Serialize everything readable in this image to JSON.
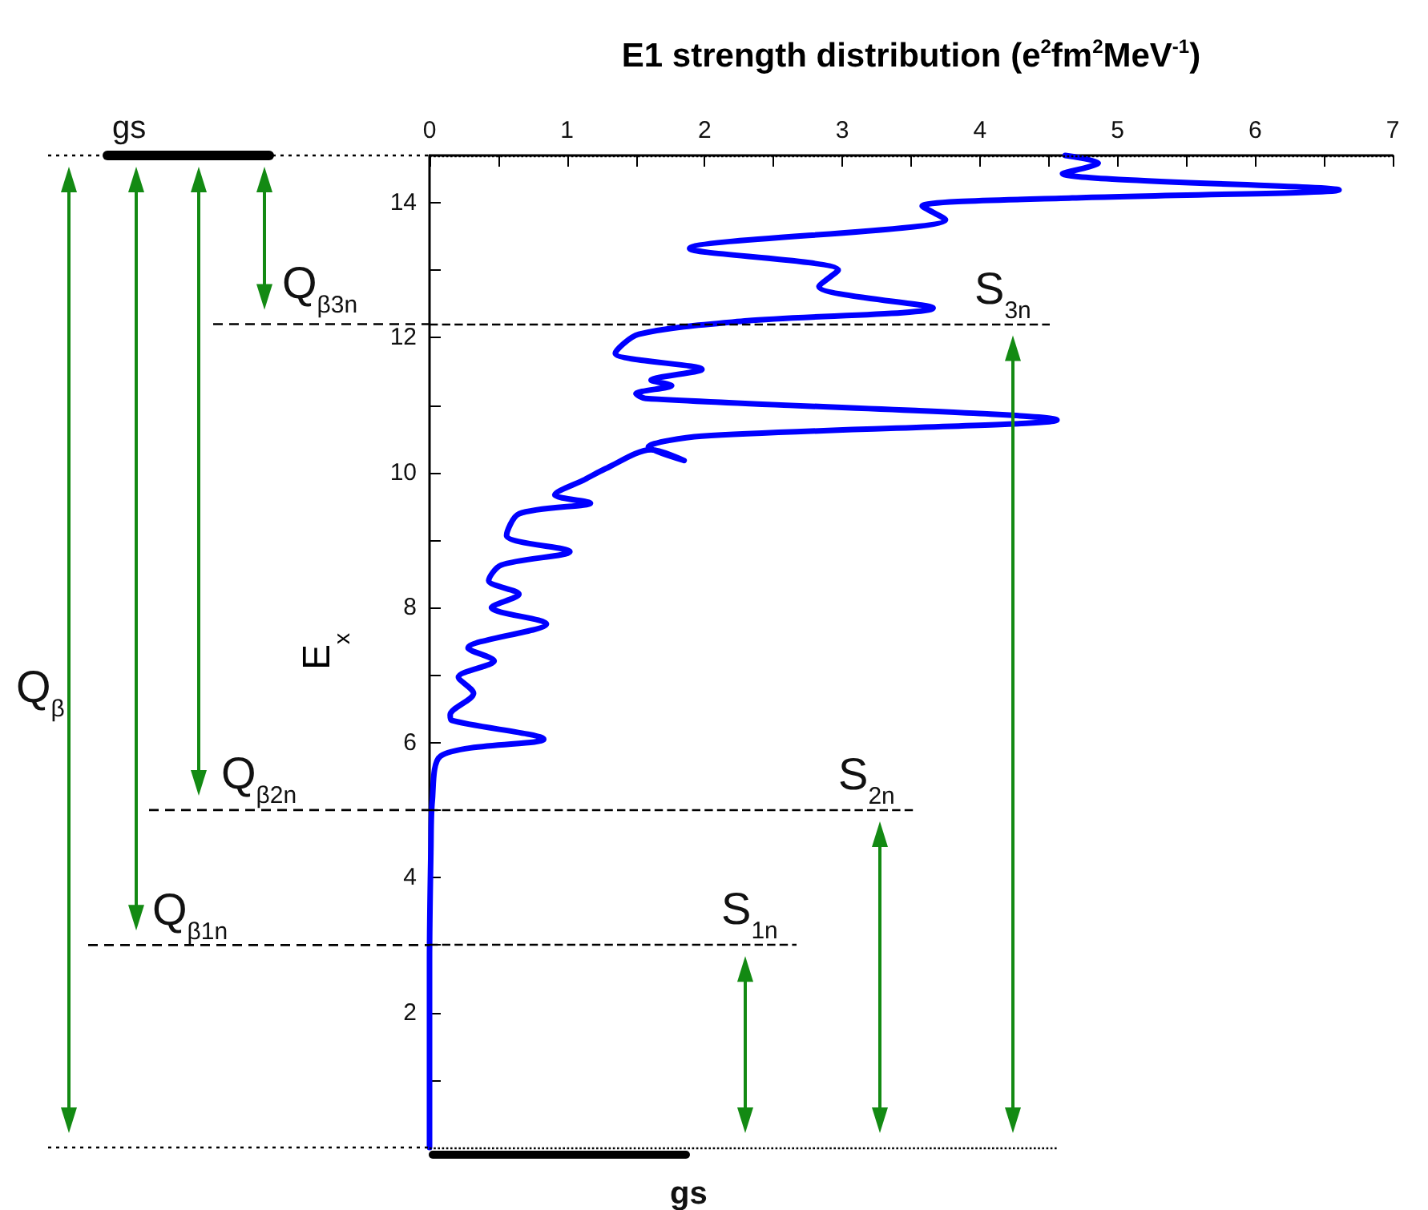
{
  "chart_data": {
    "type": "line",
    "xlabel": "E1 strength distribution (e$^{2}$fm$^{2}$MeV$^{-1}$)",
    "ylabel": "E$_{x}$",
    "series": [
      {
        "color": "#0000ff",
        "x": [
          0,
          0,
          0.01,
          0.02,
          0.08,
          0.83,
          0.16,
          0.15,
          0.32,
          0.21,
          0.47,
          0.28,
          0.85,
          0.45,
          0.65,
          0.43,
          0.52,
          1.02,
          0.56,
          0.65,
          1.17,
          0.91,
          1.13,
          1.28,
          1.61,
          1.85,
          1.59,
          1.98,
          4.56,
          1.57,
          1.5,
          1.76,
          1.61,
          1.98,
          1.35,
          1.52,
          2.31,
          3.66,
          2.83,
          2.97,
          1.89,
          3.75,
          3.58,
          4.67,
          6.61,
          4.6,
          4.86,
          4.62
        ],
        "values": [
          0,
          2.76,
          4.43,
          5.14,
          5.8,
          6.05,
          6.33,
          6.41,
          6.73,
          6.97,
          7.21,
          7.4,
          7.76,
          8.0,
          8.2,
          8.4,
          8.63,
          8.83,
          9.07,
          9.39,
          9.55,
          9.67,
          9.9,
          10.06,
          10.34,
          10.18,
          10.38,
          10.54,
          10.78,
          11.1,
          11.17,
          11.29,
          11.37,
          11.53,
          11.77,
          12.05,
          12.25,
          12.44,
          12.76,
          13.0,
          13.32,
          13.75,
          13.95,
          14.07,
          14.19,
          14.43,
          14.59,
          14.7
        ]
      }
    ],
    "xlim": [
      0,
      7
    ],
    "xticks": [
      0,
      {
        "value": 0.5,
        "label": null
      },
      1,
      {
        "value": 1.5,
        "label": null
      },
      2,
      {
        "value": 2.5,
        "label": null
      },
      3,
      {
        "value": 3.5,
        "label": null
      },
      4,
      {
        "value": 4.5,
        "label": null
      },
      5,
      {
        "value": 5.5,
        "label": null
      },
      6,
      {
        "value": 6.5,
        "label": null
      },
      7
    ],
    "ylim": [
      0,
      14.7
    ],
    "yticks": [
      {
        "value": 1,
        "label": null
      },
      2,
      {
        "value": 3,
        "label": null
      },
      4,
      {
        "value": 5,
        "label": null
      },
      6,
      {
        "value": 7,
        "label": null
      },
      8,
      {
        "value": 9,
        "label": null
      },
      10,
      {
        "value": 11,
        "label": null
      },
      12,
      {
        "value": 13,
        "label": null
      },
      14
    ],
    "grid": false,
    "marker": "none",
    "line_style": "solid",
    "ref_lines": [
      {
        "axis": "y",
        "value": 14.7,
        "line_style": "dotted",
        "color": "#000000"
      },
      {
        "axis": "y",
        "value": 12.2,
        "label": "S$_{3n}$",
        "line_style": "dashed",
        "color": "#000000"
      },
      {
        "axis": "y",
        "value": 5.0,
        "label": "S$_{2n}$",
        "line_style": "dashed",
        "color": "#000000"
      },
      {
        "axis": "y",
        "value": 3.0,
        "label": "S$_{1n}$",
        "line_style": "dashed",
        "color": "#000000"
      },
      {
        "axis": "y",
        "value": 0,
        "line_style": "dotted",
        "color": "#000000"
      }
    ],
    "annotations": [
      "gs",
      "gs",
      "Q$_{β}$",
      "Q$_{β3n}$",
      "Q$_{β2n}$",
      "Q$_{β1n}$"
    ]
  }
}
